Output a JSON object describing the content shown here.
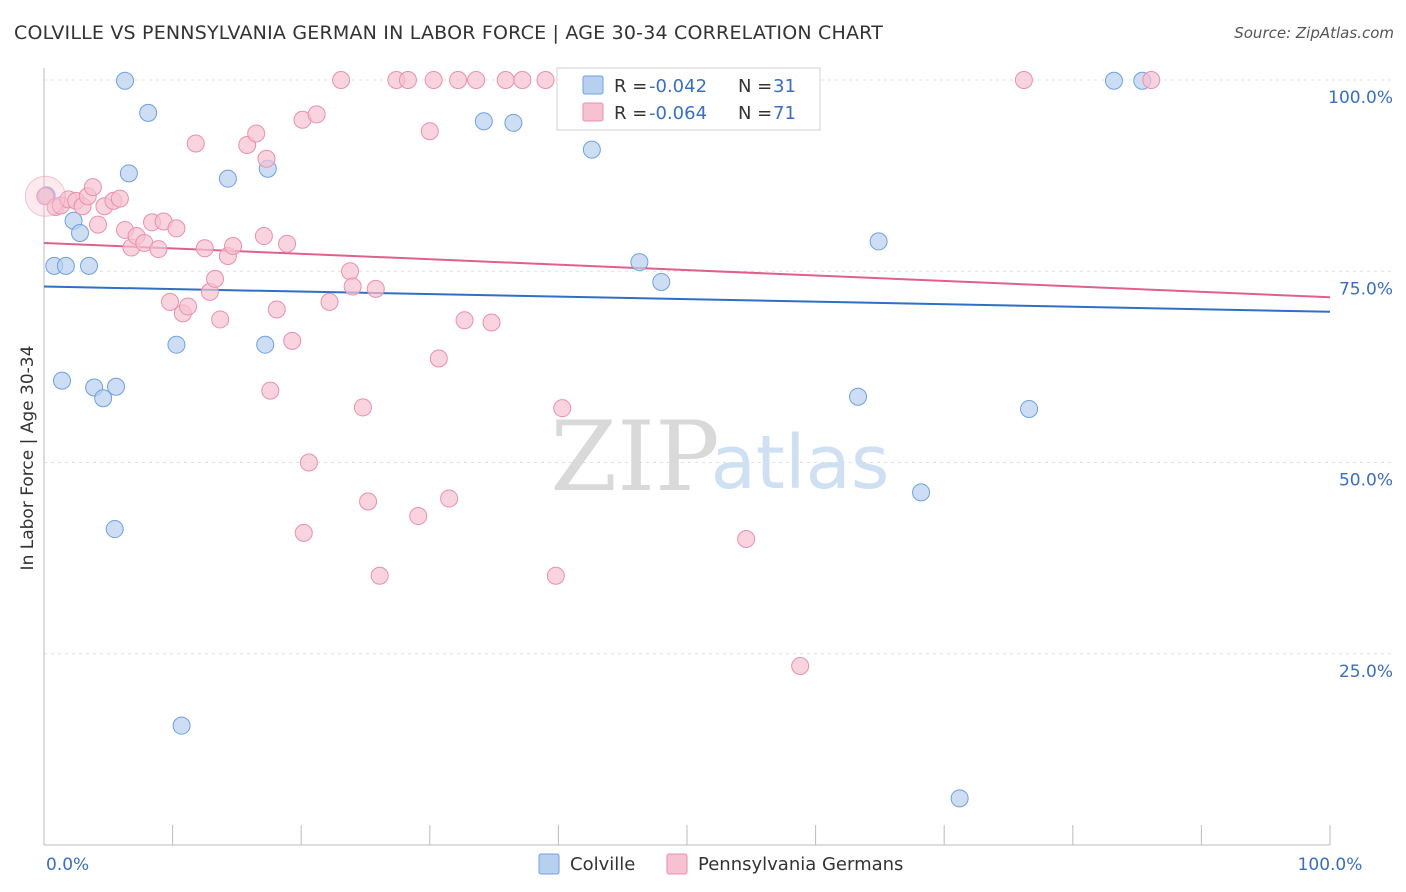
{
  "header": {
    "title": "COLVILLE VS PENNSYLVANIA GERMAN IN LABOR FORCE | AGE 30-34 CORRELATION CHART",
    "source": "Source: ZipAtlas.com"
  },
  "watermark": {
    "zip": "ZIP",
    "atlas": "atlas"
  },
  "chart_data": {
    "type": "scatter",
    "title": "COLVILLE VS PENNSYLVANIA GERMAN IN LABOR FORCE | AGE 30-34 CORRELATION CHART",
    "xlabel": "",
    "ylabel": "In Labor Force | Age 30-34",
    "xlim": [
      0,
      100
    ],
    "ylim": [
      0,
      100
    ],
    "x_tick_labels": {
      "left": "0.0%",
      "right": "100.0%"
    },
    "y_ticks": [
      {
        "value": 100,
        "label": "100.0%"
      },
      {
        "value": 75,
        "label": "75.0%"
      },
      {
        "value": 50,
        "label": "50.0%"
      },
      {
        "value": 25,
        "label": "25.0%"
      }
    ],
    "grid": true,
    "legend_position": "top-center",
    "stats": [
      {
        "r_label": "R =",
        "r_value": "-0.042",
        "n_label": "N =",
        "n_value": "31"
      },
      {
        "r_label": "R =",
        "r_value": "-0.064",
        "n_label": "N =",
        "n_value": "71"
      }
    ],
    "series": [
      {
        "name": "Colville",
        "color": "#6fa0e0",
        "fill": "#b8d0f0",
        "line_color": "#2f6fc4",
        "trend": {
          "x0": 0,
          "y0": 73.0,
          "x1": 100,
          "y1": 69.7
        },
        "points": [
          [
            0.2,
            84.9
          ],
          [
            0.8,
            75.7
          ],
          [
            1.4,
            60.7
          ],
          [
            1.7,
            75.7
          ],
          [
            2.3,
            81.6
          ],
          [
            2.8,
            80.0
          ],
          [
            3.5,
            75.7
          ],
          [
            3.9,
            59.8
          ],
          [
            4.6,
            58.4
          ],
          [
            5.6,
            59.9
          ],
          [
            5.5,
            41.3
          ],
          [
            6.3,
            99.9
          ],
          [
            6.6,
            87.8
          ],
          [
            8.1,
            95.7
          ],
          [
            10.3,
            65.4
          ],
          [
            10.7,
            15.6
          ],
          [
            14.3,
            87.1
          ],
          [
            17.2,
            65.4
          ],
          [
            17.4,
            88.4
          ],
          [
            34.2,
            94.6
          ],
          [
            36.5,
            94.4
          ],
          [
            42.6,
            90.9
          ],
          [
            46.3,
            76.2
          ],
          [
            48.0,
            73.6
          ],
          [
            63.3,
            58.6
          ],
          [
            64.9,
            78.9
          ],
          [
            68.2,
            46.1
          ],
          [
            71.2,
            6.1
          ],
          [
            76.6,
            57.0
          ],
          [
            83.2,
            99.9
          ],
          [
            85.4,
            99.9
          ]
        ]
      },
      {
        "name": "Pennsylvania Germans",
        "color": "#eb8fae",
        "fill": "#f6c2d2",
        "line_color": "#e0608d",
        "trend": {
          "x0": 0,
          "y0": 78.7,
          "x1": 100,
          "y1": 71.6
        },
        "points": [
          [
            0.1,
            84.8
          ],
          [
            0.9,
            83.4
          ],
          [
            1.3,
            83.6
          ],
          [
            1.9,
            84.4
          ],
          [
            2.5,
            84.2
          ],
          [
            3.0,
            83.5
          ],
          [
            3.4,
            84.8
          ],
          [
            3.8,
            86.0
          ],
          [
            4.2,
            81.1
          ],
          [
            4.7,
            83.5
          ],
          [
            5.4,
            84.2
          ],
          [
            5.9,
            84.5
          ],
          [
            6.3,
            80.4
          ],
          [
            6.8,
            78.1
          ],
          [
            7.2,
            79.6
          ],
          [
            7.8,
            78.7
          ],
          [
            8.4,
            81.4
          ],
          [
            8.9,
            77.9
          ],
          [
            9.3,
            81.5
          ],
          [
            9.8,
            71.0
          ],
          [
            10.3,
            80.6
          ],
          [
            10.8,
            69.5
          ],
          [
            11.2,
            70.4
          ],
          [
            11.8,
            91.7
          ],
          [
            12.5,
            78.0
          ],
          [
            12.9,
            72.3
          ],
          [
            13.3,
            74.0
          ],
          [
            13.7,
            68.7
          ],
          [
            14.3,
            77.0
          ],
          [
            14.7,
            78.3
          ],
          [
            15.8,
            91.5
          ],
          [
            16.5,
            93.0
          ],
          [
            17.1,
            79.6
          ],
          [
            17.3,
            89.7
          ],
          [
            17.6,
            59.4
          ],
          [
            18.1,
            70.0
          ],
          [
            18.9,
            78.6
          ],
          [
            19.3,
            65.9
          ],
          [
            20.1,
            94.8
          ],
          [
            20.6,
            50.0
          ],
          [
            21.2,
            95.5
          ],
          [
            22.2,
            71.0
          ],
          [
            23.1,
            100.0
          ],
          [
            23.8,
            75.0
          ],
          [
            24.0,
            73.0
          ],
          [
            24.8,
            57.2
          ],
          [
            25.2,
            44.9
          ],
          [
            25.8,
            72.7
          ],
          [
            26.1,
            35.2
          ],
          [
            27.4,
            100.0
          ],
          [
            28.3,
            100.0
          ],
          [
            29.1,
            43.0
          ],
          [
            30.0,
            93.3
          ],
          [
            30.3,
            100.0
          ],
          [
            30.7,
            63.6
          ],
          [
            31.5,
            45.3
          ],
          [
            32.2,
            100.0
          ],
          [
            32.7,
            68.6
          ],
          [
            33.6,
            100.0
          ],
          [
            34.8,
            68.3
          ],
          [
            35.9,
            100.0
          ],
          [
            37.2,
            100.0
          ],
          [
            39.0,
            100.0
          ],
          [
            39.8,
            35.2
          ],
          [
            40.3,
            57.1
          ],
          [
            47.1,
            100.0
          ],
          [
            54.6,
            40.0
          ],
          [
            58.8,
            23.4
          ],
          [
            76.2,
            100.0
          ],
          [
            86.1,
            100.0
          ],
          [
            20.2,
            40.8
          ]
        ]
      }
    ]
  },
  "legend": {
    "items": [
      {
        "label": "Colville"
      },
      {
        "label": "Pennsylvania Germans"
      }
    ]
  }
}
